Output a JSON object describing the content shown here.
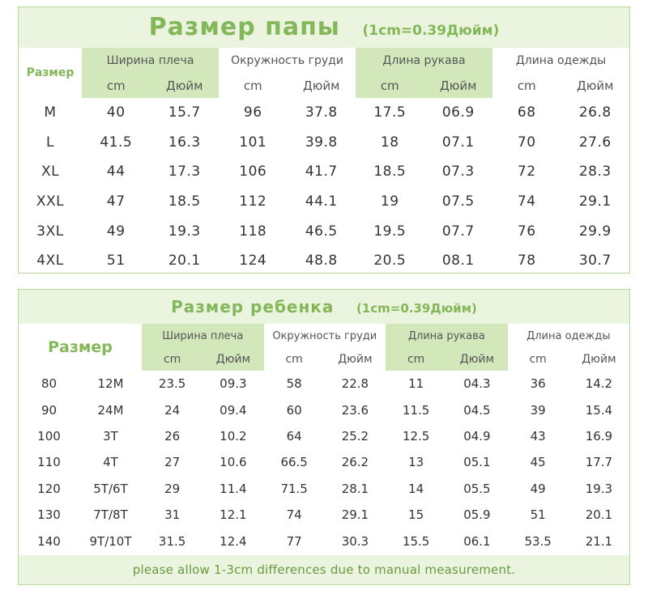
{
  "dad": {
    "title": "Размер папы",
    "subtitle": "(1cm=0.39Дюйм)",
    "size_header": "Размер",
    "groups": [
      "Ширина плеча",
      "Окружность груди",
      "Длина рукава",
      "Длина одежды"
    ],
    "unit_cm": "cm",
    "unit_inch": "Дюйм",
    "rows": [
      [
        "M",
        "40",
        "15.7",
        "96",
        "37.8",
        "17.5",
        "06.9",
        "68",
        "26.8"
      ],
      [
        "L",
        "41.5",
        "16.3",
        "101",
        "39.8",
        "18",
        "07.1",
        "70",
        "27.6"
      ],
      [
        "XL",
        "44",
        "17.3",
        "106",
        "41.7",
        "18.5",
        "07.3",
        "72",
        "28.3"
      ],
      [
        "XXL",
        "47",
        "18.5",
        "112",
        "44.1",
        "19",
        "07.5",
        "74",
        "29.1"
      ],
      [
        "3XL",
        "49",
        "19.3",
        "118",
        "46.5",
        "19.5",
        "07.7",
        "76",
        "29.9"
      ],
      [
        "4XL",
        "51",
        "20.1",
        "124",
        "48.8",
        "20.5",
        "08.1",
        "78",
        "30.7"
      ]
    ]
  },
  "kid": {
    "title": "Размер ребенка",
    "subtitle": "(1cm=0.39Дюйм)",
    "size_header": "Размер",
    "groups": [
      "Ширина плеча",
      "Окружность груди",
      "Длина рукава",
      "Длина одежды"
    ],
    "unit_cm": "cm",
    "unit_inch": "Дюйм",
    "rows": [
      [
        "80",
        "12M",
        "23.5",
        "09.3",
        "58",
        "22.8",
        "11",
        "04.3",
        "36",
        "14.2"
      ],
      [
        "90",
        "24M",
        "24",
        "09.4",
        "60",
        "23.6",
        "11.5",
        "04.5",
        "39",
        "15.4"
      ],
      [
        "100",
        "3T",
        "26",
        "10.2",
        "64",
        "25.2",
        "12.5",
        "04.9",
        "43",
        "16.9"
      ],
      [
        "110",
        "4T",
        "27",
        "10.6",
        "66.5",
        "26.2",
        "13",
        "05.1",
        "45",
        "17.7"
      ],
      [
        "120",
        "5T/6T",
        "29",
        "11.4",
        "71.5",
        "28.1",
        "14",
        "05.5",
        "49",
        "19.3"
      ],
      [
        "130",
        "7T/8T",
        "31",
        "12.1",
        "74",
        "29.1",
        "15",
        "05.9",
        "51",
        "20.1"
      ],
      [
        "140",
        "9T/10T",
        "31.5",
        "12.4",
        "77",
        "30.3",
        "15.5",
        "06.1",
        "53.5",
        "21.1"
      ]
    ],
    "footer_note": "please allow 1-3cm differences due to manual measurement."
  },
  "colors": {
    "accent_green": "#84b75a",
    "shade_green": "#d2e8bb",
    "band_green": "#eaf4de",
    "border_green": "#b9d99c"
  }
}
